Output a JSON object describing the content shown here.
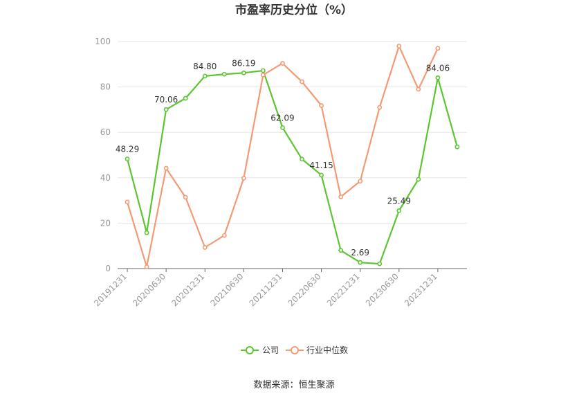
{
  "chart_data": {
    "type": "line",
    "title": "市盈率历史分位（%）",
    "xlabel": "",
    "ylabel": "",
    "ylim": [
      0,
      100
    ],
    "yticks": [
      0,
      20,
      40,
      60,
      80,
      100
    ],
    "x": [
      "20191231",
      "20200331",
      "20200630",
      "20200930",
      "20201231",
      "20210331",
      "20210630",
      "20210930",
      "20211231",
      "20220331",
      "20220630",
      "20220930",
      "20221231",
      "20230331",
      "20230630",
      "20230930",
      "20231231",
      "20240331"
    ],
    "xtick_labels": [
      "20191231",
      "20200630",
      "20201231",
      "20210630",
      "20211231",
      "20220630",
      "20221231",
      "20230630",
      "20231231"
    ],
    "series": [
      {
        "name": "公司",
        "color": "#5cc531",
        "values": [
          48.29,
          15.8,
          70.06,
          75.0,
          84.8,
          85.6,
          86.19,
          87.2,
          62.09,
          48.2,
          41.15,
          8.0,
          2.69,
          2.1,
          25.49,
          39.3,
          84.06,
          53.6
        ],
        "labeled_indices": [
          0,
          2,
          4,
          6,
          8,
          10,
          12,
          14,
          16
        ]
      },
      {
        "name": "行业中位数",
        "color": "#f39a74",
        "values": [
          29.3,
          0.8,
          44.2,
          31.4,
          9.3,
          14.6,
          39.8,
          85.3,
          90.4,
          82.3,
          71.8,
          31.6,
          38.5,
          71.0,
          98.0,
          79.0,
          97.0,
          null
        ]
      }
    ],
    "legend_position": "bottom",
    "grid": true
  },
  "source_text": "数据来源：恒生聚源"
}
